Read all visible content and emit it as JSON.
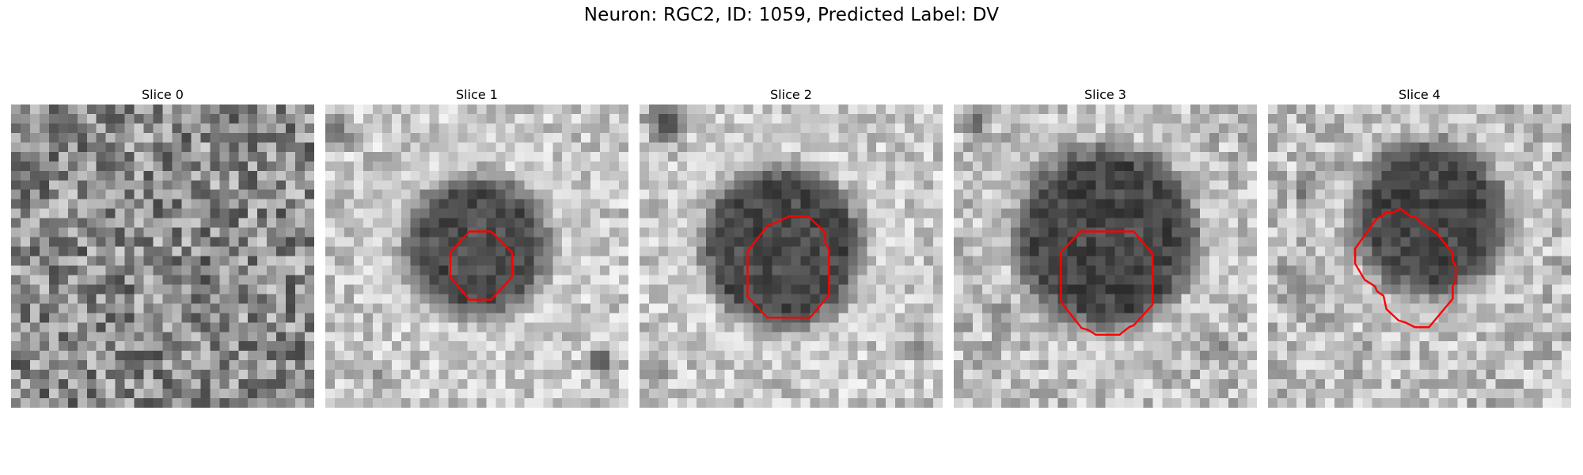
{
  "figure": {
    "title": "Neuron: RGC2, ID: 1059, Predicted Label: DV"
  },
  "slices": [
    {
      "title": "Slice 0"
    },
    {
      "title": "Slice 1"
    },
    {
      "title": "Slice 2"
    },
    {
      "title": "Slice 3"
    },
    {
      "title": "Slice 4"
    }
  ],
  "colors": {
    "contour": "#ff0000",
    "colormap": "gray"
  }
}
